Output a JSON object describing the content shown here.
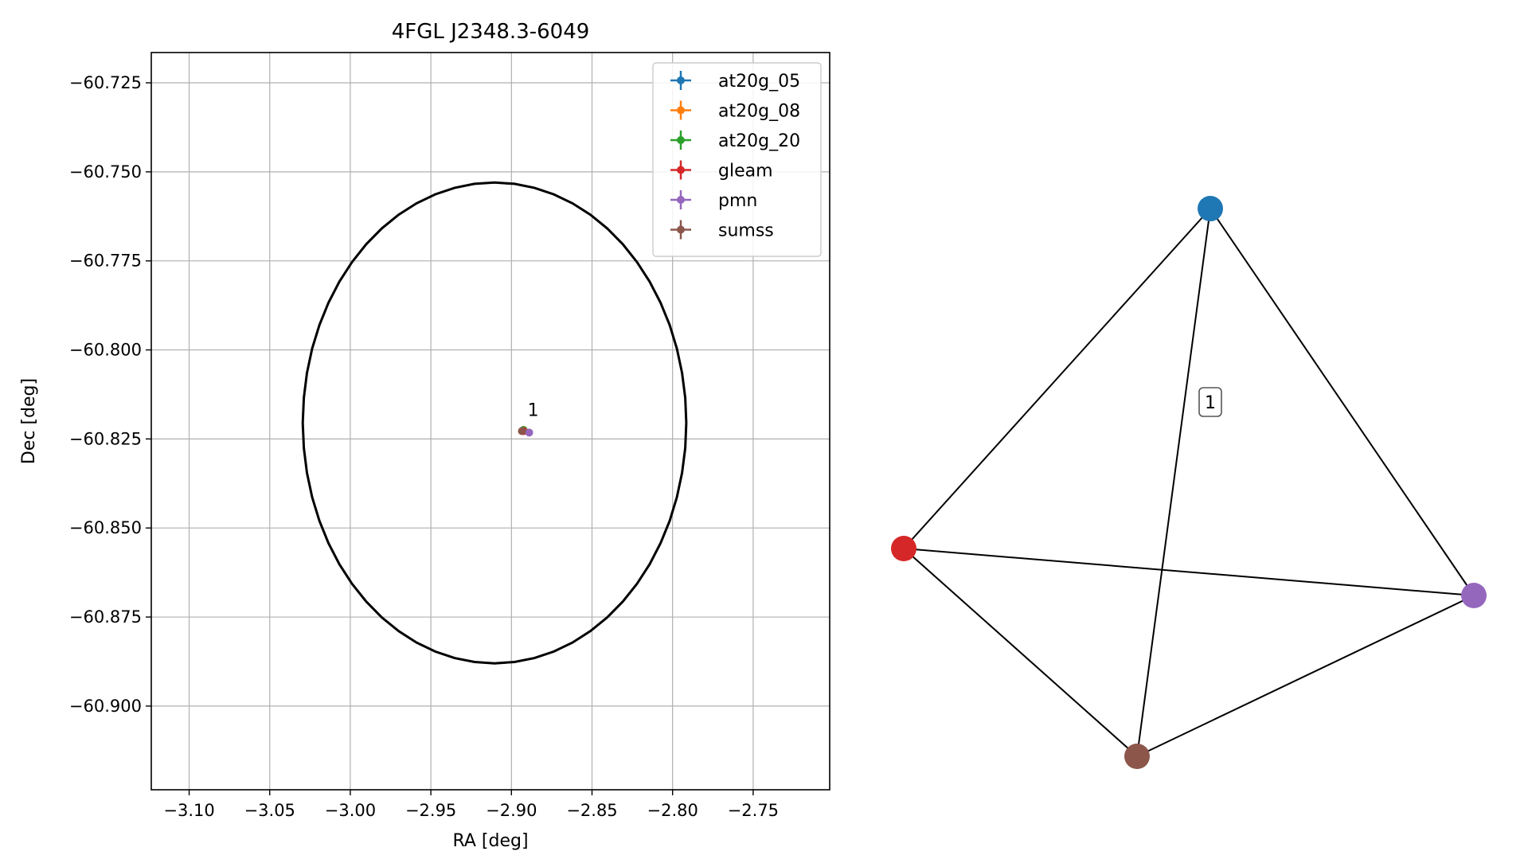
{
  "chart_data": [
    {
      "type": "scatter",
      "title": "4FGL J2348.3-6049",
      "xlabel": "RA [deg]",
      "ylabel": "Dec [deg]",
      "xlim": [
        -3.1235,
        -2.7025
      ],
      "ylim": [
        -60.9235,
        -60.7165
      ],
      "x_ticks": [
        -3.1,
        -3.05,
        -3.0,
        -2.95,
        -2.9,
        -2.85,
        -2.8,
        -2.75
      ],
      "x_tick_labels": [
        "−3.10",
        "−3.05",
        "−3.00",
        "−2.95",
        "−2.90",
        "−2.85",
        "−2.80",
        "−2.75"
      ],
      "y_ticks": [
        -60.725,
        -60.75,
        -60.775,
        -60.8,
        -60.825,
        -60.85,
        -60.875,
        -60.9
      ],
      "y_tick_labels": [
        "−60.725",
        "−60.750",
        "−60.775",
        "−60.800",
        "−60.825",
        "−60.850",
        "−60.875",
        "−60.900"
      ],
      "grid": true,
      "legend_position": "top-right",
      "ellipse": {
        "center": [
          -2.9105,
          -60.8205
        ],
        "ra_half_width": 0.119,
        "dec_half_height": 0.0675
      },
      "series": [
        {
          "name": "at20g_05",
          "color": "#1f77b4",
          "x": [
            -2.8925
          ],
          "y": [
            -60.8225
          ]
        },
        {
          "name": "at20g_08",
          "color": "#ff7f0e",
          "x": [
            -2.8925
          ],
          "y": [
            -60.8225
          ]
        },
        {
          "name": "at20g_20",
          "color": "#2ca02c",
          "x": [
            -2.8925
          ],
          "y": [
            -60.8225
          ]
        },
        {
          "name": "gleam",
          "color": "#d62728",
          "x": [
            -2.8925
          ],
          "y": [
            -60.8228
          ]
        },
        {
          "name": "pmn",
          "color": "#9467bd",
          "x": [
            -2.889
          ],
          "y": [
            -60.8232
          ]
        },
        {
          "name": "sumss",
          "color": "#8c564b",
          "x": [
            -2.8935
          ],
          "y": [
            -60.8228
          ]
        }
      ],
      "annotations": [
        {
          "text": "1",
          "x": -2.8865,
          "y": -60.8185
        }
      ]
    },
    {
      "type": "network",
      "nodes": [
        {
          "id": "at20g",
          "color": "#1f77b4"
        },
        {
          "id": "gleam",
          "color": "#d62728"
        },
        {
          "id": "pmn",
          "color": "#9467bd"
        },
        {
          "id": "sumss",
          "color": "#8c564b"
        }
      ],
      "edges": [
        [
          "at20g",
          "gleam"
        ],
        [
          "at20g",
          "pmn"
        ],
        [
          "at20g",
          "sumss"
        ],
        [
          "gleam",
          "pmn"
        ],
        [
          "gleam",
          "sumss"
        ],
        [
          "pmn",
          "sumss"
        ]
      ],
      "label": "1"
    }
  ]
}
